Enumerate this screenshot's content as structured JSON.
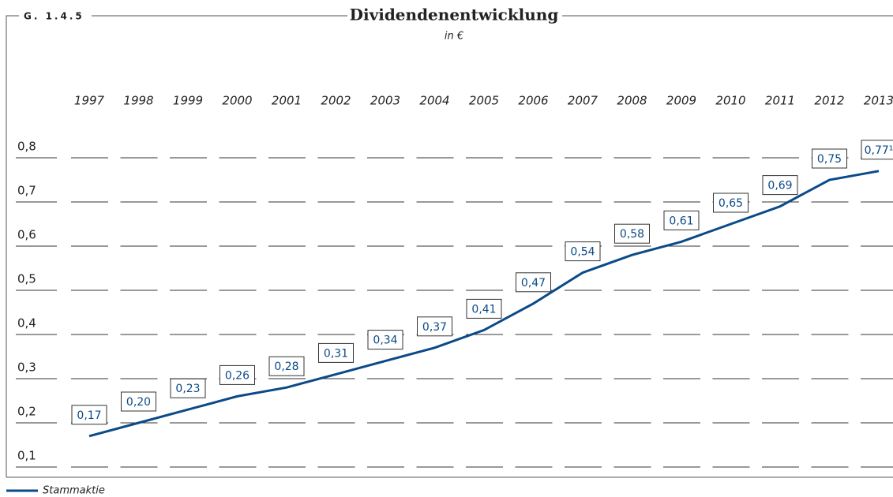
{
  "chart_data": {
    "type": "line",
    "figure_label": "G. 1.4.5",
    "title": "Dividendenentwicklung",
    "subtitle": "in €",
    "categories": [
      "1997",
      "1998",
      "1999",
      "2000",
      "2001",
      "2002",
      "2003",
      "2004",
      "2005",
      "2006",
      "2007",
      "2008",
      "2009",
      "2010",
      "2011",
      "2012",
      "2013"
    ],
    "series": [
      {
        "name": "Stammaktie",
        "color": "#0b4a88",
        "values": [
          0.17,
          0.2,
          0.23,
          0.26,
          0.28,
          0.31,
          0.34,
          0.37,
          0.41,
          0.47,
          0.54,
          0.58,
          0.61,
          0.65,
          0.69,
          0.75,
          0.77
        ],
        "value_labels": [
          "0,17",
          "0,20",
          "0,23",
          "0,26",
          "0,28",
          "0,31",
          "0,34",
          "0,37",
          "0,41",
          "0,47",
          "0,54",
          "0,58",
          "0,61",
          "0,65",
          "0,69",
          "0,75",
          "0,77¹"
        ]
      }
    ],
    "ylim": [
      0.1,
      0.8
    ],
    "yticks": [
      {
        "value": 0.1,
        "label": "0,1"
      },
      {
        "value": 0.2,
        "label": "0,2"
      },
      {
        "value": 0.3,
        "label": "0,3"
      },
      {
        "value": 0.4,
        "label": "0,4"
      },
      {
        "value": 0.5,
        "label": "0,5"
      },
      {
        "value": 0.6,
        "label": "0,6"
      },
      {
        "value": 0.7,
        "label": "0,7"
      },
      {
        "value": 0.8,
        "label": "0,8"
      }
    ],
    "grid": true
  }
}
